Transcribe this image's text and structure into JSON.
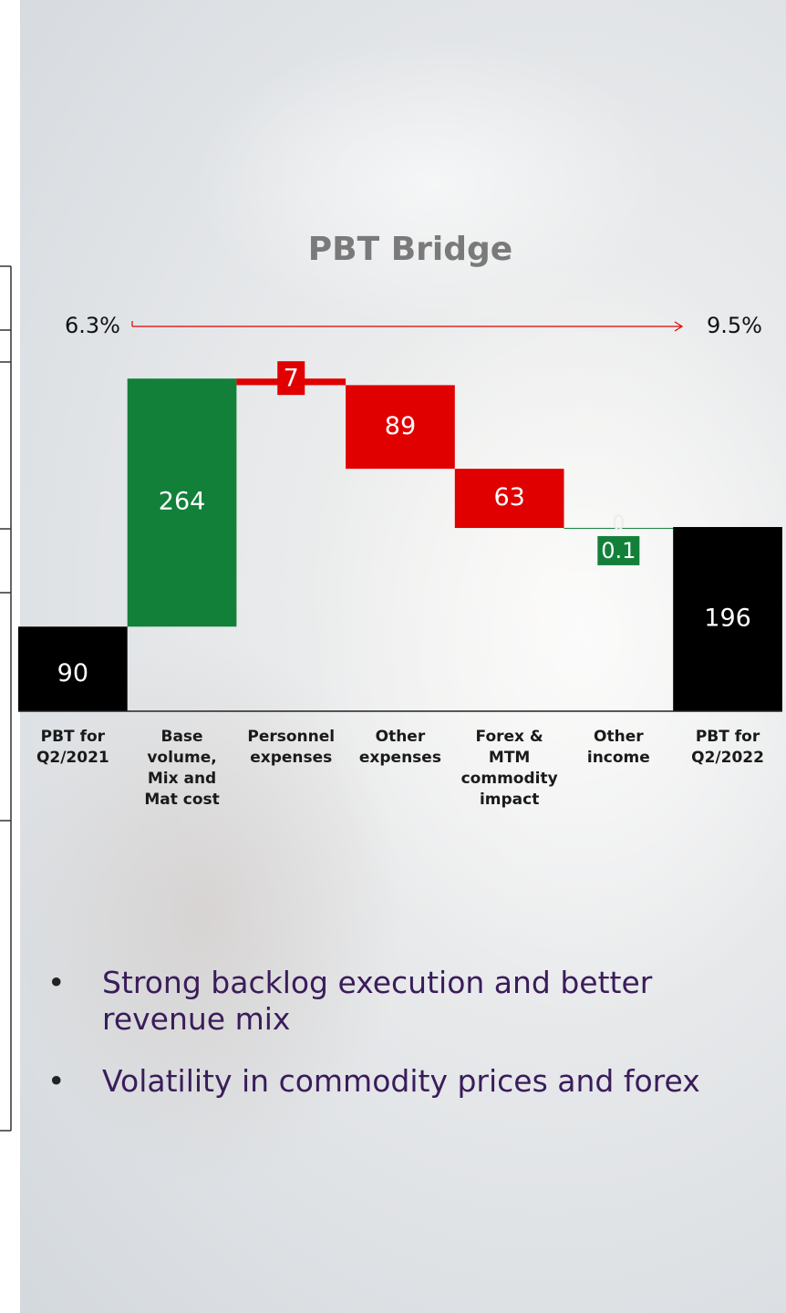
{
  "chart_data": {
    "type": "waterfall",
    "title": "PBT Bridge",
    "categories": [
      "PBT for Q2/2021",
      "Base volume, Mix and Mat cost",
      "Personnel expenses",
      "Other expenses",
      "Forex & MTM commodity impact",
      "Other income",
      "PBT for Q2/2022"
    ],
    "values": [
      90,
      264,
      7,
      89,
      63,
      0.1,
      196
    ],
    "measures": [
      "total",
      "increase",
      "decrease",
      "decrease",
      "decrease",
      "increase",
      "total"
    ],
    "colors": {
      "total": "#000000",
      "increase": "#13803a",
      "decrease": "#e10000"
    },
    "ylim": [
      0,
      360
    ],
    "margin": {
      "from": "6.3%",
      "to": "9.5%"
    },
    "annotations": [
      "0"
    ]
  },
  "bullets": [
    "Strong backlog execution and better revenue mix",
    "Volatility in commodity prices and forex"
  ]
}
